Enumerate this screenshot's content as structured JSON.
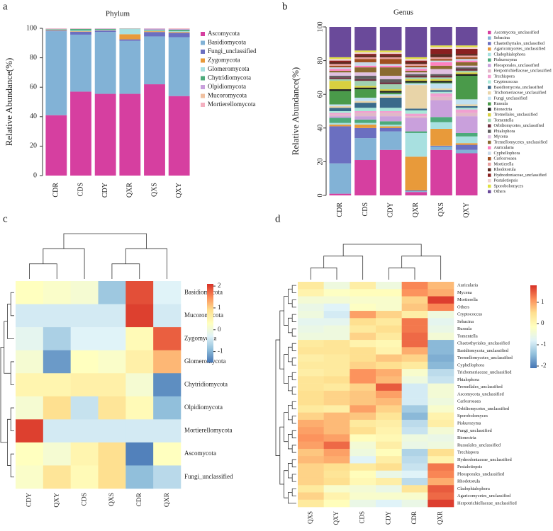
{
  "chart_data": [
    {
      "type": "stacked_bar",
      "panel": "a",
      "title": "Phylum",
      "ylabel": "Relative Abundance(%)",
      "categories": [
        "CDR",
        "CDS",
        "CDY",
        "QXR",
        "QXS",
        "QXY"
      ],
      "ylim": [
        0,
        100
      ],
      "yticks": [
        0,
        20,
        40,
        60,
        80,
        100
      ],
      "series": [
        {
          "name": "Ascomycota",
          "color": "#d63fa0",
          "values": [
            41,
            57,
            55.5,
            55.5,
            62,
            54
          ]
        },
        {
          "name": "Basidiomycota",
          "color": "#82b2d6",
          "values": [
            57,
            38.7,
            42,
            36,
            32.5,
            40
          ]
        },
        {
          "name": "Fungi_unclassified",
          "color": "#6b6fc0",
          "values": [
            0.5,
            2,
            1,
            1,
            3,
            3
          ]
        },
        {
          "name": "Zygomycota",
          "color": "#e89a3a",
          "values": [
            0.3,
            0.3,
            0.2,
            3.5,
            0.5,
            0.5
          ]
        },
        {
          "name": "Glomeromycota",
          "color": "#a8e0e0",
          "values": [
            0.3,
            0.5,
            0.3,
            3.5,
            0.5,
            0.5
          ]
        },
        {
          "name": "Chytridiomycota",
          "color": "#4daa7a",
          "values": [
            0.3,
            1,
            0.5,
            0.2,
            0.5,
            1
          ]
        },
        {
          "name": "Olpidiomycota",
          "color": "#c9a0dc",
          "values": [
            0.3,
            0.2,
            0.3,
            0.2,
            0.8,
            0.5
          ]
        },
        {
          "name": "Mucoromycota",
          "color": "#f0c0a0",
          "values": [
            0.1,
            0.1,
            0.1,
            0.1,
            0.1,
            0.1
          ]
        },
        {
          "name": "Mortierellomycota",
          "color": "#f4b0c0",
          "values": [
            0.2,
            0.2,
            0.1,
            0.0,
            0.1,
            0.4
          ]
        }
      ]
    },
    {
      "type": "stacked_bar",
      "panel": "b",
      "title": "Genus",
      "ylabel": "Relative Abundance(%)",
      "categories": [
        "CDR",
        "CDS",
        "CDY",
        "QXR",
        "QXS",
        "QXY"
      ],
      "ylim": [
        0,
        100
      ],
      "yticks": [
        0,
        20,
        40,
        60,
        80,
        100
      ],
      "series": [
        {
          "name": "Ascomycota_unclassified",
          "color": "#d63fa0",
          "values": [
            1,
            21,
            27,
            2,
            27,
            25
          ]
        },
        {
          "name": "Sebacina",
          "color": "#82b2d6",
          "values": [
            18,
            13,
            11,
            0.5,
            2,
            2
          ]
        },
        {
          "name": "Chaetothyriales_unclassified",
          "color": "#6b6fc0",
          "values": [
            22,
            6,
            2,
            0.5,
            0.5,
            3
          ]
        },
        {
          "name": "Agaricomycetes_unclassified",
          "color": "#e89a3a",
          "values": [
            1,
            2,
            1,
            20,
            10,
            1
          ]
        },
        {
          "name": "Cladophialophora",
          "color": "#a8e0e0",
          "values": [
            1,
            1,
            1,
            14,
            4,
            4
          ]
        },
        {
          "name": "Piskurozyma",
          "color": "#4daa7a",
          "values": [
            3,
            2,
            2,
            1,
            3,
            2
          ]
        },
        {
          "name": "Pleosporales_unclassified",
          "color": "#c9a0dc",
          "values": [
            1,
            2,
            3,
            8,
            10,
            10
          ]
        },
        {
          "name": "Herpotrichiellaceae_unclassified",
          "color": "#e0b8c8",
          "values": [
            1,
            2,
            2,
            1,
            2,
            2
          ]
        },
        {
          "name": "Trechispora",
          "color": "#f0a0d0",
          "values": [
            1,
            1,
            1,
            1.5,
            2,
            2
          ]
        },
        {
          "name": "Cryptococcus",
          "color": "#a8e8d8",
          "values": [
            1,
            2,
            2,
            2,
            1,
            1
          ]
        },
        {
          "name": "Basidiomycota_unclassified",
          "color": "#3a6a8a",
          "values": [
            2,
            3,
            6,
            1,
            1,
            1
          ]
        },
        {
          "name": "Trichomeriaceae_unclassified",
          "color": "#e8d4a8",
          "values": [
            1,
            1,
            1,
            14,
            1,
            1
          ]
        },
        {
          "name": "Fungi_unclassified",
          "color": "#c0e0f0",
          "values": [
            1,
            2,
            1,
            1,
            3,
            3
          ]
        },
        {
          "name": "Russula",
          "color": "#4a9a4a",
          "values": [
            8,
            5,
            1,
            0.5,
            0.5,
            14
          ]
        },
        {
          "name": "Bionectria",
          "color": "#202020",
          "values": [
            1,
            1,
            1,
            1,
            1,
            1
          ]
        },
        {
          "name": "Tremellales_unclassified",
          "color": "#d8d040",
          "values": [
            5,
            1,
            1,
            1,
            1,
            1
          ]
        },
        {
          "name": "Tomentella",
          "color": "#a0d0b0",
          "values": [
            1,
            3,
            3,
            1,
            1,
            1
          ]
        },
        {
          "name": "Orbiliomycetes_unclassified",
          "color": "#703040",
          "values": [
            1,
            1,
            1,
            1,
            1,
            1
          ]
        },
        {
          "name": "Phialophora",
          "color": "#606060",
          "values": [
            1,
            2,
            2,
            1,
            1,
            1
          ]
        },
        {
          "name": "Mycena",
          "color": "#e0c0e0",
          "values": [
            2,
            2,
            2,
            1,
            3,
            1
          ]
        },
        {
          "name": "Tremellomycetes_unclassified",
          "color": "#8a6a30",
          "values": [
            1,
            3,
            5,
            1,
            2,
            2
          ]
        },
        {
          "name": "Auricularia",
          "color": "#ff80c0",
          "values": [
            1,
            1,
            1,
            1,
            2,
            1
          ]
        },
        {
          "name": "Cyphellophora",
          "color": "#c8d8e8",
          "values": [
            1,
            2,
            1,
            1,
            1,
            1
          ]
        },
        {
          "name": "Carlosrosaea",
          "color": "#a05020",
          "values": [
            1,
            2,
            3,
            1,
            1,
            1
          ]
        },
        {
          "name": "Mortierella",
          "color": "#e8a0a0",
          "values": [
            1,
            1,
            1,
            1,
            1,
            1
          ]
        },
        {
          "name": "Rhodotorula",
          "color": "#5a2a20",
          "values": [
            1,
            1,
            1,
            1,
            2,
            1
          ]
        },
        {
          "name": "Hydnodontaceae_unclassified",
          "color": "#8a2020",
          "values": [
            1,
            1,
            1,
            1,
            3,
            3
          ]
        },
        {
          "name": "Pestalotiopsis",
          "color": "#f0d0d0",
          "values": [
            1,
            1,
            1,
            1,
            1,
            1
          ]
        },
        {
          "name": "Sporobolomyces",
          "color": "#e0e040",
          "values": [
            1,
            1,
            1,
            1,
            1,
            1
          ]
        },
        {
          "name": "Others",
          "color": "#6a4a9a",
          "values": [
            18,
            14,
            14,
            18,
            11,
            11
          ]
        }
      ]
    },
    {
      "type": "heatmap",
      "panel": "c",
      "columns": [
        "CDY",
        "QXY",
        "CDS",
        "QXS",
        "CDR",
        "QXR"
      ],
      "rows": [
        "Basidiomycota",
        "Mucoromycota",
        "Zygomycota",
        "Glomeromycota",
        "Chytridiomycota",
        "Olpidiomycota",
        "Mortierellomycota",
        "Ascomycota",
        "Fungi_unclassified"
      ],
      "values": [
        [
          0.3,
          0.2,
          0.1,
          -0.8,
          1.9,
          -0.3
        ],
        [
          -0.4,
          -0.4,
          -0.4,
          -0.4,
          2.0,
          -0.4
        ],
        [
          -0.2,
          -0.7,
          -0.3,
          -0.3,
          0.4,
          1.8
        ],
        [
          0.1,
          -1.2,
          0.3,
          0.2,
          0.6,
          1.2
        ],
        [
          0.5,
          0.5,
          0.6,
          0.6,
          0.1,
          -1.3
        ],
        [
          0.1,
          0.9,
          -0.5,
          0.8,
          0.4,
          -0.9
        ],
        [
          2.0,
          -0.4,
          -0.4,
          -0.4,
          -0.4,
          -0.4
        ],
        [
          0.3,
          0.1,
          0.5,
          0.9,
          -1.4,
          0.3
        ],
        [
          0.2,
          0.8,
          0.4,
          0.9,
          -0.9,
          -0.6
        ]
      ],
      "zlim": [
        -1.5,
        2.1
      ],
      "zticks": [
        -1,
        0,
        1,
        2
      ]
    },
    {
      "type": "heatmap",
      "panel": "d",
      "columns": [
        "QXS",
        "QXY",
        "CDS",
        "CDY",
        "CDR",
        "QXR"
      ],
      "rows": [
        "Auricularia",
        "Mycena",
        "Mortierella",
        "Others",
        "Cryptococcus",
        "Sebacina",
        "Russula",
        "Tomentella",
        "Chaetothyriales_unclassified",
        "Basidiomycota_unclassified",
        "Tremellomycetes_unclassified",
        "Cyphellophora",
        "Trichomeriaceae_unclassified",
        "Phialophora",
        "Tremellales_unclassified",
        "Ascomycota_unclassified",
        "Carlosrosaea",
        "Orbiliomycetes_unclassified",
        "Sporobolomyces",
        "Piskurozyma",
        "Fungi_unclassified",
        "Bionectria",
        "Russulales_unclassified",
        "Trechispora",
        "Hydnodontaceae_unclassified",
        "Pestalotiopsis",
        "Pleosporales_unclassified",
        "Rhodotorula",
        "Cladophialophora",
        "Agaricomycetes_unclassified",
        "Herpotrichiellaceae_unclassified"
      ],
      "values": [
        [
          0.3,
          -0.5,
          0.2,
          -0.5,
          1.2,
          0.8
        ],
        [
          0.1,
          -0.2,
          -0.1,
          -0.1,
          1.1,
          0.9
        ],
        [
          -0.4,
          -0.4,
          -0.3,
          -0.3,
          0.6,
          1.7
        ],
        [
          -0.6,
          -0.8,
          -0.2,
          -0.3,
          0.7,
          1.2
        ],
        [
          -0.5,
          -0.9,
          1.0,
          0.6,
          0.2,
          -0.5
        ],
        [
          -0.7,
          -0.7,
          0.5,
          0.3,
          1.3,
          -0.7
        ],
        [
          -0.6,
          -0.5,
          0.3,
          0.5,
          1.3,
          -0.6
        ],
        [
          -0.5,
          -0.5,
          0.6,
          0.3,
          1.4,
          -0.4
        ],
        [
          0.3,
          0.4,
          0.1,
          0.0,
          1.4,
          -1.5
        ],
        [
          0.4,
          0.4,
          0.5,
          0.1,
          0.9,
          -1.5
        ],
        [
          0.2,
          0.3,
          0.5,
          0.7,
          0.6,
          -1.6
        ],
        [
          0.3,
          0.3,
          0.6,
          0.5,
          0.3,
          -1.5
        ],
        [
          0.2,
          0.3,
          1.1,
          0.9,
          -0.3,
          -1.1
        ],
        [
          0.4,
          0.5,
          1.1,
          0.8,
          -0.5,
          -1.0
        ],
        [
          0.4,
          0.3,
          0.6,
          1.5,
          -0.9,
          -0.4
        ],
        [
          0.5,
          0.6,
          0.7,
          1.0,
          -0.9,
          -0.4
        ],
        [
          0.5,
          0.6,
          0.7,
          0.8,
          -0.9,
          -0.5
        ],
        [
          0.3,
          0.2,
          1.0,
          0.6,
          -1.3,
          -0.3
        ],
        [
          0.6,
          0.8,
          0.7,
          0.4,
          -1.5,
          0.1
        ],
        [
          0.9,
          0.8,
          0.3,
          0.2,
          -1.1,
          0.2
        ],
        [
          1.0,
          0.8,
          0.5,
          0.1,
          -1.0,
          -0.4
        ],
        [
          1.1,
          1.0,
          -0.1,
          0.0,
          -0.5,
          -0.6
        ],
        [
          1.0,
          1.4,
          -0.4,
          0.2,
          -0.6,
          -0.5
        ],
        [
          0.7,
          1.0,
          -0.5,
          -0.1,
          -1.2,
          0.5
        ],
        [
          0.8,
          0.9,
          -0.8,
          0.2,
          -1.1,
          0.1
        ],
        [
          0.6,
          0.5,
          0.3,
          0.5,
          -1.0,
          1.3
        ],
        [
          0.6,
          0.4,
          -0.1,
          -0.6,
          -0.8,
          1.2
        ],
        [
          0.6,
          0.5,
          0.0,
          0.2,
          -1.1,
          0.9
        ],
        [
          0.3,
          -0.3,
          -0.4,
          -0.6,
          0.4,
          1.5
        ],
        [
          0.6,
          0.1,
          -0.3,
          -0.3,
          -0.3,
          1.4
        ],
        [
          0.3,
          -0.1,
          -0.6,
          -0.8,
          -0.6,
          1.7
        ]
      ],
      "zlim": [
        -2.1,
        1.8
      ],
      "zticks": [
        -2,
        -1,
        0,
        1
      ]
    }
  ]
}
